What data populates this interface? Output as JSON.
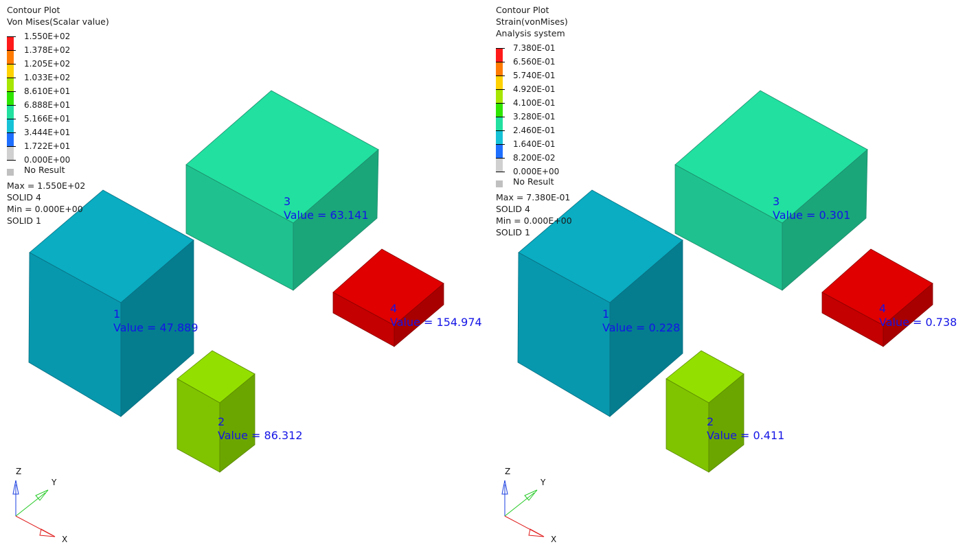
{
  "panels": [
    {
      "header": [
        "Contour Plot",
        "Von Mises(Scalar value)"
      ],
      "legend_values": [
        "1.550E+02",
        "1.378E+02",
        "1.205E+02",
        "1.033E+02",
        "8.610E+01",
        "6.888E+01",
        "5.166E+01",
        "3.444E+01",
        "1.722E+01",
        "0.000E+00"
      ],
      "no_result_label": "No Result",
      "stats": [
        "Max =  1.550E+02",
        "SOLID 4",
        "Min =  0.000E+00",
        "SOLID 1"
      ],
      "boxes": [
        {
          "id": "1",
          "value": "Value = 47.889"
        },
        {
          "id": "2",
          "value": "Value = 86.312"
        },
        {
          "id": "3",
          "value": "Value = 63.141"
        },
        {
          "id": "4",
          "value": "Value = 154.974"
        }
      ],
      "axes": {
        "z": "Z",
        "y": "Y",
        "x": "X"
      }
    },
    {
      "header": [
        "Contour Plot",
        "Strain(vonMises)",
        "Analysis system"
      ],
      "legend_values": [
        "7.380E-01",
        "6.560E-01",
        "5.740E-01",
        "4.920E-01",
        "4.100E-01",
        "3.280E-01",
        "2.460E-01",
        "1.640E-01",
        "8.200E-02",
        "0.000E+00"
      ],
      "no_result_label": "No Result",
      "stats": [
        "Max =  7.380E-01",
        "SOLID 4",
        "Min =  0.000E+00",
        "SOLID 1"
      ],
      "boxes": [
        {
          "id": "1",
          "value": "Value = 0.228"
        },
        {
          "id": "2",
          "value": "Value = 0.411"
        },
        {
          "id": "3",
          "value": "Value = 0.301"
        },
        {
          "id": "4",
          "value": "Value = 0.738"
        }
      ],
      "axes": {
        "z": "Z",
        "y": "Y",
        "x": "X"
      }
    }
  ],
  "colors": {
    "legend_bands": [
      "#ff1a1a",
      "#ff7a00",
      "#ffd200",
      "#a6e600",
      "#2ee600",
      "#22e0a0",
      "#16c2d6",
      "#1f6fff",
      "#d0d0d0"
    ],
    "label_blue": "#1414e6",
    "box1": "#0ea9c2",
    "box2": "#8fe000",
    "box3": "#22e0a0",
    "box4": "#e00000"
  }
}
